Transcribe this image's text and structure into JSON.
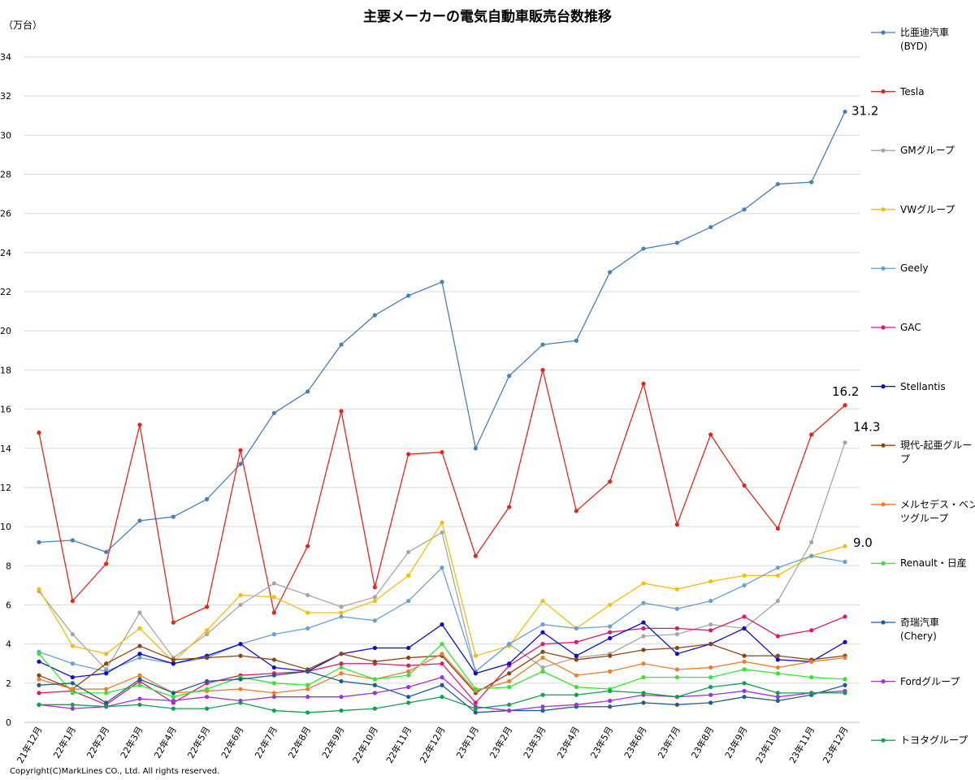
{
  "title": "主要メーカーの電気自動車販売台数推移",
  "y_unit": "（万台）",
  "copyright": "Copyright(C)MarkLines CO., Ltd. All rights reserved.",
  "chart_data": {
    "type": "line",
    "title": "主要メーカーの電気自動車販売台数推移",
    "ylabel": "（万台）",
    "ylim": [
      0,
      34
    ],
    "yticks": [
      0,
      2,
      4,
      6,
      8,
      10,
      12,
      14,
      16,
      18,
      20,
      22,
      24,
      26,
      28,
      30,
      32,
      34
    ],
    "grid": true,
    "legend_position": "right",
    "categories": [
      "21年12月",
      "22年1月",
      "22年2月",
      "22年3月",
      "22年4月",
      "22年5月",
      "22年6月",
      "22年7月",
      "22年8月",
      "22年9月",
      "22年10月",
      "22年11月",
      "22年12月",
      "23年1月",
      "23年2月",
      "23年3月",
      "23年4月",
      "23年5月",
      "23年6月",
      "23年7月",
      "23年8月",
      "23年9月",
      "23年10月",
      "23年11月",
      "23年12月"
    ],
    "series": [
      {
        "name": "比亜迪汽車\n(BYD)",
        "color": "#4a7ebb",
        "values": [
          9.2,
          9.3,
          8.7,
          10.3,
          10.5,
          11.4,
          13.2,
          15.8,
          16.9,
          19.3,
          20.8,
          21.8,
          22.5,
          14.0,
          17.7,
          19.3,
          19.5,
          23.0,
          24.2,
          24.5,
          25.3,
          26.2,
          27.5,
          27.6,
          31.2
        ]
      },
      {
        "name": "Tesla",
        "color": "#e8241a",
        "values": [
          14.8,
          6.2,
          8.1,
          15.2,
          5.1,
          5.9,
          13.9,
          5.6,
          9.0,
          15.9,
          6.9,
          13.7,
          13.8,
          8.5,
          11.0,
          18.0,
          10.8,
          12.3,
          17.3,
          10.1,
          14.7,
          12.1,
          9.9,
          14.7,
          16.2
        ]
      },
      {
        "name": "GMグループ",
        "color": "#a6a6a6",
        "values": [
          6.7,
          4.5,
          2.7,
          5.6,
          3.3,
          4.5,
          6.0,
          7.1,
          6.5,
          5.9,
          6.4,
          8.7,
          9.7,
          2.6,
          4.0,
          2.8,
          3.3,
          3.5,
          4.4,
          4.5,
          5.0,
          4.8,
          6.2,
          9.2,
          14.3
        ]
      },
      {
        "name": "VWグループ",
        "color": "#f5be0c",
        "values": [
          6.8,
          3.9,
          3.5,
          4.8,
          3.1,
          4.7,
          6.5,
          6.4,
          5.6,
          5.6,
          6.2,
          7.5,
          10.2,
          3.4,
          3.9,
          6.2,
          4.8,
          6.0,
          7.1,
          6.8,
          7.2,
          7.5,
          7.5,
          8.5,
          9.0
        ]
      },
      {
        "name": "Geely",
        "color": "#6a9fd4",
        "values": [
          3.6,
          3.0,
          2.6,
          3.3,
          3.0,
          3.3,
          4.0,
          4.5,
          4.8,
          5.4,
          5.2,
          6.2,
          7.9,
          2.6,
          4.0,
          5.0,
          4.8,
          4.9,
          6.1,
          5.8,
          6.2,
          7.0,
          7.9,
          8.5,
          8.2
        ]
      },
      {
        "name": "GAC",
        "color": "#e0186f",
        "values": [
          1.5,
          1.6,
          0.9,
          2.1,
          1.0,
          2.0,
          2.4,
          2.5,
          2.6,
          3.0,
          3.0,
          2.9,
          3.0,
          1.0,
          2.9,
          4.0,
          4.1,
          4.6,
          4.8,
          4.8,
          4.7,
          5.4,
          4.4,
          4.7,
          5.4
        ]
      },
      {
        "name": "Stellantis",
        "color": "#0a0ad4",
        "values": [
          3.1,
          2.3,
          2.5,
          3.5,
          3.0,
          3.4,
          4.0,
          2.8,
          2.6,
          3.5,
          3.8,
          3.8,
          5.0,
          2.5,
          3.0,
          4.6,
          3.4,
          4.3,
          5.1,
          3.5,
          4.0,
          4.8,
          3.2,
          3.1,
          4.1
        ]
      },
      {
        "name": "現代-起亜グループ",
        "color": "#8b4513",
        "values": [
          2.4,
          1.7,
          3.0,
          3.9,
          3.2,
          3.3,
          3.4,
          3.2,
          2.7,
          3.5,
          3.1,
          3.3,
          3.4,
          1.5,
          2.5,
          3.6,
          3.2,
          3.4,
          3.7,
          3.8,
          4.0,
          3.4,
          3.4,
          3.2,
          3.4
        ]
      },
      {
        "name": "メルセデス・ベンツグループ",
        "color": "#ed7d31",
        "values": [
          2.2,
          1.7,
          1.7,
          2.4,
          1.5,
          1.6,
          1.7,
          1.5,
          1.7,
          2.5,
          2.2,
          2.6,
          3.5,
          1.6,
          2.1,
          3.3,
          2.4,
          2.6,
          3.0,
          2.7,
          2.8,
          3.1,
          2.8,
          3.1,
          3.3
        ]
      },
      {
        "name": "Renault・日産",
        "color": "#33e633",
        "values": [
          3.5,
          1.5,
          1.5,
          1.9,
          1.3,
          1.7,
          2.3,
          2.0,
          1.9,
          2.8,
          2.2,
          2.4,
          4.0,
          1.7,
          1.8,
          2.6,
          1.8,
          1.7,
          2.3,
          2.3,
          2.3,
          2.7,
          2.5,
          2.3,
          2.2
        ]
      },
      {
        "name": "奇瑞汽車\n(Chery)",
        "color": "#1f5c8c",
        "values": [
          1.9,
          2.0,
          1.0,
          2.2,
          1.5,
          2.1,
          2.2,
          2.4,
          2.6,
          2.1,
          1.9,
          1.3,
          1.9,
          0.5,
          0.6,
          0.6,
          0.8,
          0.8,
          1.0,
          0.9,
          1.0,
          1.3,
          1.1,
          1.4,
          1.9
        ]
      },
      {
        "name": "Fordグループ",
        "color": "#9932e6",
        "values": [
          0.9,
          0.7,
          0.8,
          1.2,
          1.1,
          1.3,
          1.1,
          1.3,
          1.3,
          1.3,
          1.5,
          1.8,
          2.3,
          0.8,
          0.6,
          0.8,
          0.9,
          1.1,
          1.4,
          1.3,
          1.4,
          1.6,
          1.3,
          1.5,
          1.6
        ]
      },
      {
        "name": "トヨタグループ",
        "color": "#12a04e",
        "values": [
          0.9,
          0.9,
          0.8,
          0.9,
          0.7,
          0.7,
          1.0,
          0.6,
          0.5,
          0.6,
          0.7,
          1.0,
          1.3,
          0.7,
          0.9,
          1.4,
          1.4,
          1.6,
          1.5,
          1.3,
          1.8,
          2.0,
          1.5,
          1.5,
          1.5
        ]
      }
    ],
    "annotations": [
      {
        "series": "比亜迪汽車\n(BYD)",
        "label": "31.2"
      },
      {
        "series": "Tesla",
        "label": "16.2"
      },
      {
        "series": "GMグループ",
        "label": "14.3"
      },
      {
        "series": "VWグループ",
        "label": "9.0"
      }
    ]
  }
}
